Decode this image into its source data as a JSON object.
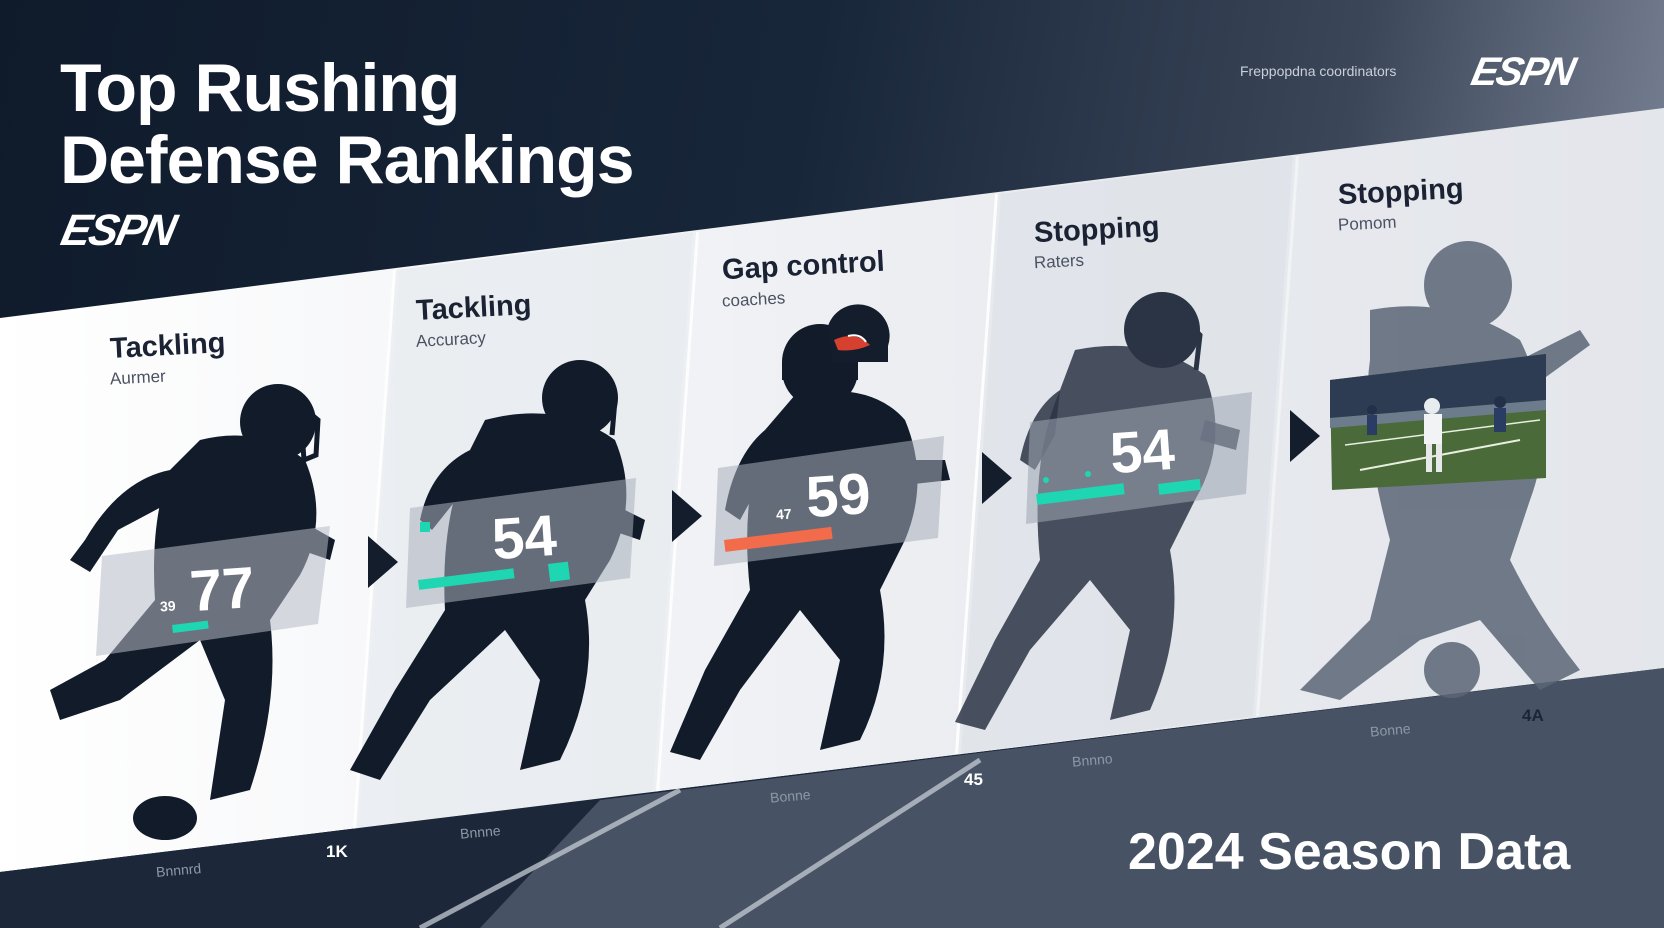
{
  "header": {
    "title_line1": "Top Rushing",
    "title_line2": "Defense Rankings",
    "brand_logo": "ESPN",
    "brand_logo_top": "ESPN",
    "top_note": "Freppopdna coordinators"
  },
  "season_label": "2024 Season Data",
  "panels": [
    {
      "title": "Tackling",
      "subtitle": "Aurmer",
      "value": "77",
      "small_value": "39",
      "footer": "Bnnnrd",
      "footer_num": "1K",
      "accent": "#1fd6b2"
    },
    {
      "title": "Tackling",
      "subtitle": "Accuracy",
      "value": "54",
      "footer": "Bnnne",
      "accent": "#1fd6b2"
    },
    {
      "title": "Gap control",
      "subtitle": "coaches",
      "value": "59",
      "small_value": "47",
      "footer": "Bonne",
      "footer_num": "45",
      "accent": "#f26b4a"
    },
    {
      "title": "Stopping",
      "subtitle": "Raters",
      "value": "54",
      "footer": "Bnnno",
      "accent": "#1fd6b2"
    },
    {
      "title": "Stopping",
      "subtitle": "Pomom",
      "footer": "Bonne",
      "footer_num": "4A"
    }
  ],
  "colors": {
    "navy": "#0f1b2b",
    "silhouette": "#141d2c",
    "teal_accent": "#1fd6b2",
    "orange_accent": "#f26b4a",
    "panel_light": "#eef0f3"
  },
  "icons": [
    "player-silhouette-icon",
    "football-icon",
    "helmet-icon",
    "chevron-right-icon"
  ]
}
